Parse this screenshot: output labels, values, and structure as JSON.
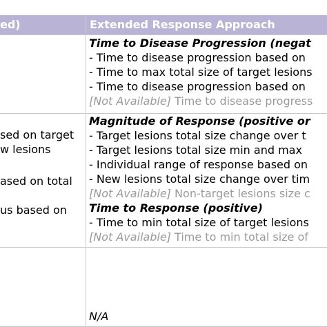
{
  "header": {
    "left_label": "ed)",
    "right_label": "Extended Response Approach"
  },
  "row1": {
    "title": "Time to Disease Progression (negat",
    "items": [
      "- Time to disease progression based on",
      "- Time to max total size of target lesions",
      "- Time to disease progression based on"
    ],
    "na_tag": "[Not Available]",
    "na_text": " Time to disease progress"
  },
  "row2": {
    "left_lines": [
      "sed on target",
      "w lesions",
      "ased on total",
      "us based on"
    ],
    "title": "Magnitude of Response (positive or",
    "items": [
      "- Target lesions total size change over t",
      "- Target lesions total size min and max",
      "- Individual range of response based on",
      "- New lesions total size change over tim"
    ],
    "na_tag": "[Not Available]",
    "na_text": " Non-target lesions size c",
    "title2": "Time to Response (positive)",
    "items2": [
      "- Time to min total size of target lesions"
    ],
    "na2_tag": "[Not Available]",
    "na2_text": " Time to min total size of"
  },
  "row3": {
    "value": "N/A"
  },
  "colors": {
    "header_bg": "#b9b4d6",
    "header_text": "#ffffff",
    "grid": "#c9c9c9",
    "na_text": "#9a9a9a"
  }
}
